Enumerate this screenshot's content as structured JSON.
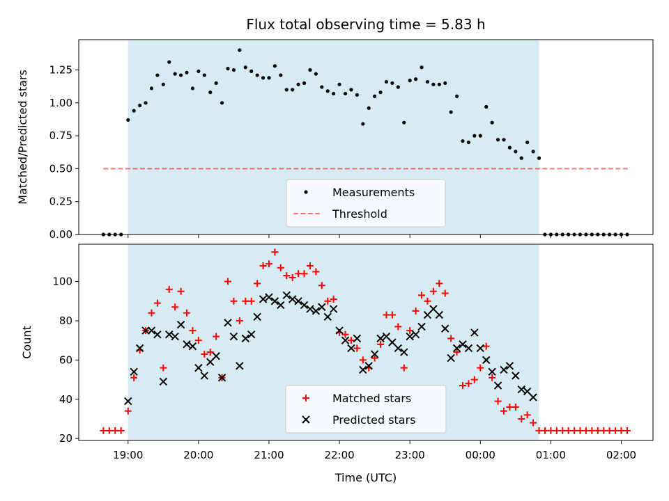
{
  "chart_data": [
    {
      "type": "scatter",
      "title": "Flux total observing time = 5.83 h",
      "xlabel": "",
      "ylabel": "Matched/Predicted stars",
      "xlim": [
        "18:18",
        "02:27"
      ],
      "ylim": [
        0,
        1.48
      ],
      "yticks": [
        "0.00",
        "0.25",
        "0.50",
        "0.75",
        "1.00",
        "1.25"
      ],
      "observing_window": [
        "19:00",
        "00:50"
      ],
      "threshold": 0.5,
      "threshold_range": [
        "18:39",
        "02:07"
      ],
      "legend": [
        "Measurements",
        "Threshold"
      ],
      "series": [
        {
          "name": "Measurements",
          "color": "#000000",
          "x": [
            "18:39",
            "18:44",
            "18:49",
            "18:54",
            "19:00",
            "19:05",
            "19:10",
            "19:15",
            "19:20",
            "19:25",
            "19:30",
            "19:35",
            "19:40",
            "19:45",
            "19:50",
            "19:55",
            "20:00",
            "20:05",
            "20:10",
            "20:15",
            "20:20",
            "20:25",
            "20:30",
            "20:35",
            "20:40",
            "20:45",
            "20:50",
            "20:55",
            "21:00",
            "21:05",
            "21:10",
            "21:15",
            "21:20",
            "21:25",
            "21:30",
            "21:35",
            "21:40",
            "21:45",
            "21:50",
            "21:55",
            "22:00",
            "22:05",
            "22:10",
            "22:15",
            "22:20",
            "22:25",
            "22:30",
            "22:35",
            "22:40",
            "22:45",
            "22:50",
            "22:55",
            "23:00",
            "23:05",
            "23:10",
            "23:15",
            "23:20",
            "23:25",
            "23:30",
            "23:35",
            "23:40",
            "23:45",
            "23:50",
            "23:55",
            "00:00",
            "00:05",
            "00:10",
            "00:15",
            "00:20",
            "00:25",
            "00:30",
            "00:35",
            "00:40",
            "00:45",
            "00:50",
            "00:55",
            "01:00",
            "01:05",
            "01:10",
            "01:15",
            "01:20",
            "01:25",
            "01:30",
            "01:35",
            "01:40",
            "01:45",
            "01:50",
            "01:55",
            "02:00",
            "02:05"
          ],
          "y": [
            0,
            0,
            0,
            0,
            0.87,
            0.94,
            0.98,
            1.0,
            1.11,
            1.21,
            1.14,
            1.31,
            1.22,
            1.21,
            1.23,
            1.11,
            1.24,
            1.21,
            1.08,
            1.15,
            1.0,
            1.26,
            1.25,
            1.4,
            1.27,
            1.24,
            1.21,
            1.19,
            1.19,
            1.28,
            1.21,
            1.1,
            1.1,
            1.14,
            1.15,
            1.25,
            1.22,
            1.12,
            1.09,
            1.07,
            1.14,
            1.07,
            1.1,
            1.06,
            0.84,
            0.96,
            1.05,
            1.08,
            1.16,
            1.15,
            1.12,
            0.85,
            1.17,
            1.18,
            1.27,
            1.16,
            1.14,
            1.14,
            1.15,
            0.93,
            1.05,
            0.71,
            0.7,
            0.75,
            0.75,
            0.97,
            0.85,
            0.72,
            0.72,
            0.66,
            0.63,
            0.58,
            0.7,
            0.63,
            0.58,
            0,
            0,
            0,
            0,
            0,
            0,
            0,
            0,
            0,
            0,
            0,
            0,
            0,
            0,
            0
          ]
        }
      ]
    },
    {
      "type": "scatter",
      "title": "",
      "xlabel": "Time (UTC)",
      "ylabel": "Count",
      "xlim": [
        "18:18",
        "02:27"
      ],
      "ylim": [
        19,
        119
      ],
      "yticks": [
        "20",
        "40",
        "60",
        "80",
        "100"
      ],
      "xticks": [
        "19:00",
        "20:00",
        "21:00",
        "22:00",
        "23:00",
        "00:00",
        "01:00",
        "02:00"
      ],
      "observing_window": [
        "19:00",
        "00:50"
      ],
      "legend": [
        "Matched stars",
        "Predicted stars"
      ],
      "x": [
        "18:39",
        "18:44",
        "18:49",
        "18:54",
        "19:00",
        "19:05",
        "19:10",
        "19:15",
        "19:20",
        "19:25",
        "19:30",
        "19:35",
        "19:40",
        "19:45",
        "19:50",
        "19:55",
        "20:00",
        "20:05",
        "20:10",
        "20:15",
        "20:20",
        "20:25",
        "20:30",
        "20:35",
        "20:40",
        "20:45",
        "20:50",
        "20:55",
        "21:00",
        "21:05",
        "21:10",
        "21:15",
        "21:20",
        "21:25",
        "21:30",
        "21:35",
        "21:40",
        "21:45",
        "21:50",
        "21:55",
        "22:00",
        "22:05",
        "22:10",
        "22:15",
        "22:20",
        "22:25",
        "22:30",
        "22:35",
        "22:40",
        "22:45",
        "22:50",
        "22:55",
        "23:00",
        "23:05",
        "23:10",
        "23:15",
        "23:20",
        "23:25",
        "23:30",
        "23:35",
        "23:40",
        "23:45",
        "23:50",
        "23:55",
        "00:00",
        "00:05",
        "00:10",
        "00:15",
        "00:20",
        "00:25",
        "00:30",
        "00:35",
        "00:40",
        "00:45",
        "00:50",
        "00:55",
        "01:00",
        "01:05",
        "01:10",
        "01:15",
        "01:20",
        "01:25",
        "01:30",
        "01:35",
        "01:40",
        "01:45",
        "01:50",
        "01:55",
        "02:00",
        "02:05"
      ],
      "series": [
        {
          "name": "Matched stars",
          "color": "#ff0000",
          "marker": "plus",
          "y": [
            24,
            24,
            24,
            24,
            34,
            51,
            65,
            75,
            84,
            89,
            56,
            96,
            87,
            95,
            84,
            75,
            70,
            63,
            64,
            72,
            51,
            100,
            90,
            80,
            90,
            90,
            99,
            108,
            109,
            115,
            107,
            103,
            102,
            104,
            104,
            108,
            105,
            98,
            90,
            91,
            74,
            73,
            70,
            66,
            60,
            56,
            61,
            68,
            83,
            83,
            77,
            56,
            75,
            85,
            93,
            90,
            95,
            99,
            94,
            71,
            64,
            47,
            48,
            50,
            56,
            67,
            51,
            39,
            34,
            36,
            36,
            30,
            32,
            28,
            24,
            24,
            24,
            24,
            24,
            24,
            24,
            24,
            24,
            24,
            24,
            24,
            24,
            24,
            24,
            24
          ]
        },
        {
          "name": "Predicted stars",
          "color": "#000000",
          "marker": "x",
          "y": [
            null,
            null,
            null,
            null,
            39,
            54,
            66,
            75,
            75,
            73,
            49,
            73,
            72,
            78,
            68,
            67,
            56,
            52,
            59,
            62,
            51,
            79,
            72,
            57,
            71,
            73,
            82,
            91,
            92,
            90,
            88,
            93,
            91,
            90,
            88,
            86,
            85,
            87,
            82,
            86,
            75,
            70,
            66,
            71,
            55,
            57,
            63,
            71,
            72,
            69,
            66,
            64,
            72,
            73,
            77,
            83,
            86,
            83,
            76,
            61,
            66,
            68,
            66,
            74,
            66,
            60,
            54,
            47,
            55,
            57,
            52,
            45,
            44,
            41,
            null,
            null,
            null,
            null,
            null,
            null,
            null,
            null,
            null,
            null,
            null,
            null,
            null,
            null,
            null,
            null
          ]
        }
      ]
    }
  ]
}
